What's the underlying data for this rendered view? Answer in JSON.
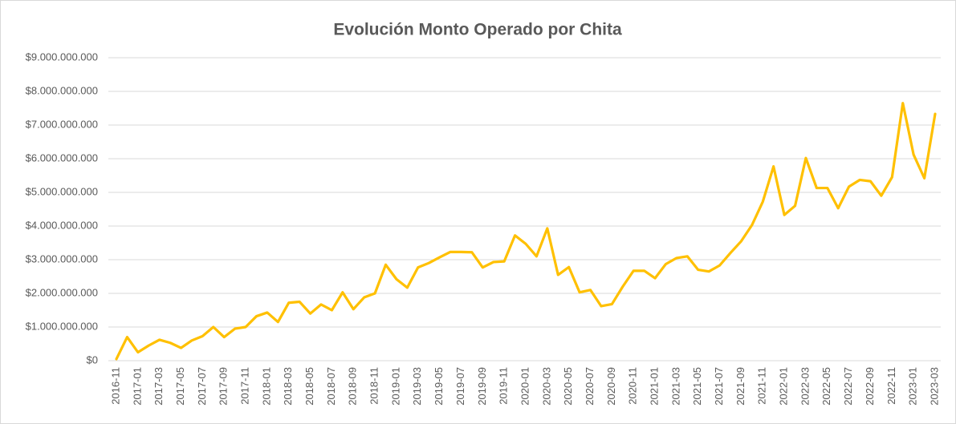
{
  "chart_data": {
    "type": "line",
    "title": "Evolución Monto Operado por Chita",
    "categories": [
      "2016-11",
      null,
      "2017-01",
      null,
      "2017-03",
      null,
      "2017-05",
      null,
      "2017-07",
      null,
      "2017-09",
      null,
      "2017-11",
      null,
      "2018-01",
      null,
      "2018-03",
      null,
      "2018-05",
      null,
      "2018-07",
      null,
      "2018-09",
      null,
      "2018-11",
      null,
      "2019-01",
      null,
      "2019-03",
      null,
      "2019-05",
      null,
      "2019-07",
      null,
      "2019-09",
      null,
      "2019-11",
      null,
      "2020-01",
      null,
      "2020-03",
      null,
      "2020-05",
      null,
      "2020-07",
      null,
      "2020-09",
      null,
      "2020-11",
      null,
      "2021-01",
      null,
      "2021-03",
      null,
      "2021-05",
      null,
      "2021-07",
      null,
      "2021-09",
      null,
      "2021-11",
      null,
      "2022-01",
      null,
      "2022-03",
      null,
      "2022-05",
      null,
      "2022-07",
      null,
      "2022-09",
      null,
      "2022-11",
      null,
      "2023-01",
      null,
      "2023-03"
    ],
    "series": [
      {
        "color": "#FFC000",
        "values": [
          50000000,
          700000000,
          250000000,
          450000000,
          620000000,
          530000000,
          380000000,
          600000000,
          730000000,
          1000000000,
          700000000,
          950000000,
          1000000000,
          1320000000,
          1430000000,
          1150000000,
          1720000000,
          1750000000,
          1400000000,
          1670000000,
          1500000000,
          2030000000,
          1530000000,
          1880000000,
          2000000000,
          2850000000,
          2420000000,
          2170000000,
          2770000000,
          2900000000,
          3070000000,
          3230000000,
          3230000000,
          3220000000,
          2770000000,
          2930000000,
          2950000000,
          3720000000,
          3470000000,
          3100000000,
          3930000000,
          2550000000,
          2780000000,
          2030000000,
          2100000000,
          1620000000,
          1680000000,
          2200000000,
          2670000000,
          2670000000,
          2450000000,
          2870000000,
          3050000000,
          3100000000,
          2700000000,
          2650000000,
          2830000000,
          3200000000,
          3550000000,
          4030000000,
          4720000000,
          5770000000,
          4330000000,
          4600000000,
          6020000000,
          5130000000,
          5130000000,
          4530000000,
          5170000000,
          5370000000,
          5330000000,
          4900000000,
          5450000000,
          7650000000,
          6120000000,
          5420000000,
          7330000000
        ]
      }
    ],
    "ylim": [
      0,
      9000000000
    ],
    "yticks": [
      {
        "value": 0,
        "label": "$0"
      },
      {
        "value": 1000000000,
        "label": "$1.000.000.000"
      },
      {
        "value": 2000000000,
        "label": "$2.000.000.000"
      },
      {
        "value": 3000000000,
        "label": "$3.000.000.000"
      },
      {
        "value": 4000000000,
        "label": "$4.000.000.000"
      },
      {
        "value": 5000000000,
        "label": "$5.000.000.000"
      },
      {
        "value": 6000000000,
        "label": "$6.000.000.000"
      },
      {
        "value": 7000000000,
        "label": "$7.000.000.000"
      },
      {
        "value": 8000000000,
        "label": "$8.000.000.000"
      },
      {
        "value": 9000000000,
        "label": "$9.000.000.000"
      }
    ],
    "grid": true
  }
}
